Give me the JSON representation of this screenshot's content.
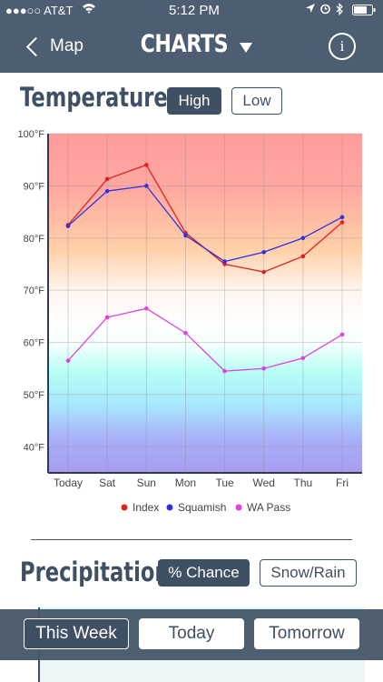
{
  "status": {
    "carrier": "●●●○○ AT&T",
    "time": "5:12 PM"
  },
  "nav": {
    "back_label": "Map",
    "title": "CHARTS",
    "info_label": "i"
  },
  "temperature": {
    "title": "Temperature",
    "toggle": [
      "High",
      "Low"
    ],
    "active": "High"
  },
  "precipitation": {
    "title": "Precipitation",
    "toggle": [
      "% Chance",
      "Snow/Rain"
    ],
    "active": "% Chance"
  },
  "bottom_tabs": {
    "labels": [
      "This Week",
      "Today",
      "Tomorrow"
    ],
    "active": "This Week"
  },
  "chart_data": {
    "type": "line",
    "categories": [
      "Today",
      "Sat",
      "Sun",
      "Mon",
      "Tue",
      "Wed",
      "Thu",
      "Fri"
    ],
    "yticks": [
      "40°F",
      "50°F",
      "60°F",
      "70°F",
      "80°F",
      "90°F",
      "100°F"
    ],
    "ylim": [
      35,
      100
    ],
    "series": [
      {
        "name": "Index",
        "color": "#e02020",
        "values": [
          82.5,
          91.3,
          94.0,
          81.0,
          75.0,
          73.5,
          76.5,
          83.0
        ]
      },
      {
        "name": "Squamish",
        "color": "#3030e0",
        "values": [
          82.3,
          89.0,
          90.0,
          80.5,
          75.5,
          77.3,
          80.0,
          84.0
        ]
      },
      {
        "name": "WA Pass",
        "color": "#e040e0",
        "values": [
          56.5,
          64.8,
          66.5,
          61.8,
          54.5,
          55.0,
          57.0,
          61.5
        ]
      }
    ],
    "legend": "bottom",
    "grid": true
  }
}
